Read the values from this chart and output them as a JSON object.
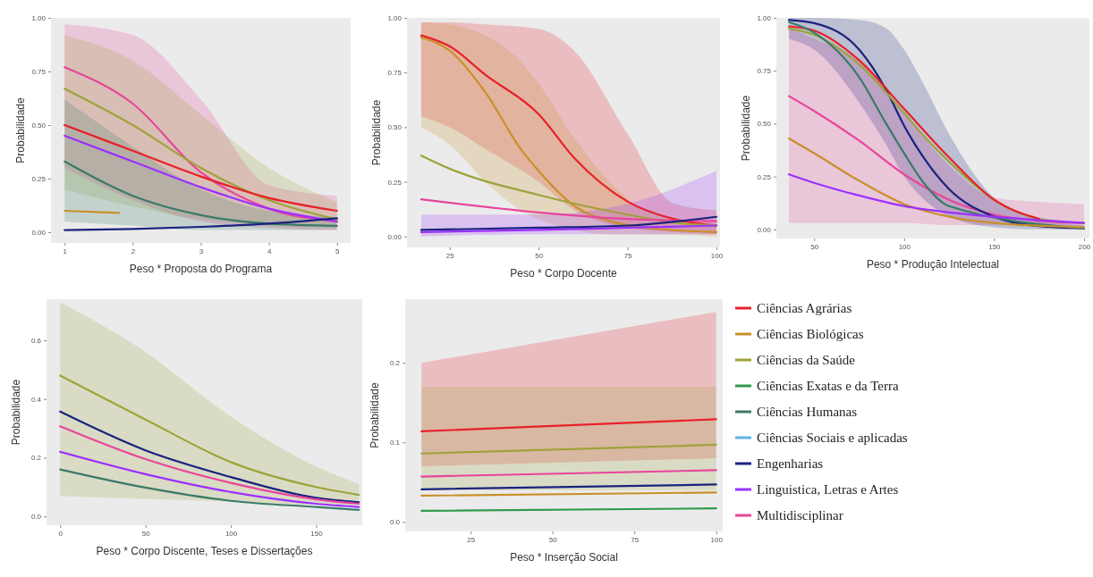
{
  "chart_data": [
    {
      "type": "line",
      "xlabel": "Peso * Proposta do Programa",
      "ylabel": "Probabilidade",
      "xlim": [
        0.8,
        5.2
      ],
      "ylim": [
        -0.05,
        1.0
      ],
      "xticks": [
        1,
        2,
        3,
        4,
        5
      ],
      "yticks": [
        {
          "value": 0,
          "label": "0.00"
        },
        {
          "value": 0.25,
          "label": "0.25"
        },
        {
          "value": 0.5,
          "label": "0.50"
        },
        {
          "value": 0.75,
          "label": "0.75"
        },
        {
          "value": 1,
          "label": "1.00"
        }
      ],
      "legend": false,
      "series": [
        {
          "color": "#e8459a",
          "x": [
            1,
            2,
            3,
            4,
            5
          ],
          "values": [
            0.77,
            0.6,
            0.28,
            0.11,
            0.05
          ],
          "lower": [
            0.3,
            0.15,
            0.05,
            0.02,
            0.01
          ],
          "upper": [
            0.97,
            0.92,
            0.62,
            0.22,
            0.17
          ]
        },
        {
          "color": "#9ea33a",
          "x": [
            1,
            2,
            3,
            4,
            5
          ],
          "values": [
            0.67,
            0.5,
            0.3,
            0.15,
            0.06
          ],
          "lower": [
            0.2,
            0.12,
            0.06,
            0.03,
            0.02
          ],
          "upper": [
            0.92,
            0.8,
            0.55,
            0.3,
            0.14
          ]
        },
        {
          "color": "#e8202a",
          "x": [
            1,
            2,
            3,
            4,
            5
          ],
          "values": [
            0.5,
            0.38,
            0.26,
            0.16,
            0.1
          ]
        },
        {
          "color": "#9b30ff",
          "x": [
            1,
            2,
            3,
            4,
            5
          ],
          "values": [
            0.45,
            0.33,
            0.21,
            0.11,
            0.05
          ]
        },
        {
          "color": "#3a7a6a",
          "x": [
            1,
            2,
            3,
            4,
            5
          ],
          "values": [
            0.33,
            0.17,
            0.08,
            0.04,
            0.03
          ],
          "lower": [
            0.05,
            0.03,
            0.01,
            0.01,
            0.01
          ],
          "upper": [
            0.62,
            0.4,
            0.2,
            0.1,
            0.07
          ]
        },
        {
          "color": "#c8902a",
          "x": [
            1,
            1.8
          ],
          "values": [
            0.1,
            0.09
          ]
        },
        {
          "color": "#1a237e",
          "x": [
            1,
            2,
            3,
            4,
            5
          ],
          "values": [
            0.01,
            0.015,
            0.025,
            0.04,
            0.065
          ]
        }
      ]
    },
    {
      "type": "line",
      "xlabel": "Peso * Corpo Docente",
      "ylabel": "Probabilidade",
      "xlim": [
        13,
        101
      ],
      "ylim": [
        -0.05,
        1.0
      ],
      "xticks": [
        25,
        50,
        75,
        100
      ],
      "yticks": [
        {
          "value": 0,
          "label": "0.00"
        },
        {
          "value": 0.25,
          "label": "0.25"
        },
        {
          "value": 0.5,
          "label": "0.50"
        },
        {
          "value": 0.75,
          "label": "0.75"
        },
        {
          "value": 1,
          "label": "1.00"
        }
      ],
      "legend": false,
      "series": [
        {
          "color": "#e8202a",
          "x": [
            17,
            25,
            35,
            50,
            60,
            75,
            88,
            100
          ],
          "values": [
            0.92,
            0.87,
            0.74,
            0.56,
            0.36,
            0.16,
            0.08,
            0.05
          ],
          "lower": [
            0.55,
            0.5,
            0.4,
            0.25,
            0.12,
            0.04,
            0.02,
            0.01
          ],
          "upper": [
            0.98,
            0.98,
            0.97,
            0.95,
            0.85,
            0.47,
            0.15,
            0.12
          ]
        },
        {
          "color": "#c8902a",
          "x": [
            17,
            25,
            35,
            45,
            50,
            60,
            70,
            80,
            100
          ],
          "values": [
            0.91,
            0.85,
            0.66,
            0.4,
            0.3,
            0.14,
            0.07,
            0.04,
            0.02
          ],
          "lower": [
            0.5,
            0.42,
            0.25,
            0.12,
            0.08,
            0.03,
            0.01,
            0.01,
            0.0
          ],
          "upper": [
            0.98,
            0.97,
            0.92,
            0.8,
            0.7,
            0.45,
            0.25,
            0.12,
            0.06
          ]
        },
        {
          "color": "#9ea33a",
          "x": [
            17,
            25,
            50,
            75,
            90,
            100
          ],
          "values": [
            0.37,
            0.31,
            0.19,
            0.1,
            0.06,
            0.05
          ]
        },
        {
          "color": "#e8459a",
          "x": [
            17,
            50,
            75,
            100
          ],
          "values": [
            0.17,
            0.11,
            0.08,
            0.07
          ]
        },
        {
          "color": "#9b30ff",
          "x": [
            17,
            50,
            75,
            100
          ],
          "values": [
            0.02,
            0.03,
            0.04,
            0.05
          ],
          "lower": [
            0.0,
            0.01,
            0.01,
            0.01
          ],
          "upper": [
            0.1,
            0.1,
            0.15,
            0.3
          ]
        },
        {
          "color": "#1a237e",
          "x": [
            17,
            50,
            75,
            100
          ],
          "values": [
            0.03,
            0.04,
            0.05,
            0.09
          ]
        }
      ]
    },
    {
      "type": "line",
      "xlabel": "Peso * Produção Intelectual",
      "ylabel": "Probabilidade",
      "xlim": [
        29,
        203
      ],
      "ylim": [
        -0.043,
        1.0
      ],
      "xticks": [
        50,
        100,
        150,
        200
      ],
      "yticks": [
        {
          "value": 0,
          "label": "0.00"
        },
        {
          "value": 0.25,
          "label": "0.25"
        },
        {
          "value": 0.5,
          "label": "0.50"
        },
        {
          "value": 0.75,
          "label": "0.75"
        },
        {
          "value": 1,
          "label": "1.00"
        }
      ],
      "legend": false,
      "series": [
        {
          "color": "#e8459a",
          "x": [
            36,
            50,
            75,
            100,
            125,
            150,
            175,
            200
          ],
          "values": [
            0.63,
            0.56,
            0.42,
            0.26,
            0.14,
            0.07,
            0.04,
            0.03
          ],
          "lower": [
            0.03,
            0.03,
            0.03,
            0.03,
            0.02,
            0.02,
            0.02,
            0.01
          ],
          "upper": [
            0.95,
            0.9,
            0.8,
            0.55,
            0.3,
            0.15,
            0.13,
            0.12
          ]
        },
        {
          "color": "#1a237e",
          "x": [
            36,
            50,
            75,
            90,
            100,
            110,
            125,
            150,
            175,
            200
          ],
          "values": [
            0.99,
            0.975,
            0.85,
            0.66,
            0.49,
            0.35,
            0.19,
            0.06,
            0.015,
            0.005
          ],
          "lower": [
            0.9,
            0.85,
            0.6,
            0.4,
            0.25,
            0.15,
            0.06,
            0.01,
            0.0,
            0.0
          ],
          "upper": [
            1.0,
            1.0,
            0.99,
            0.95,
            0.85,
            0.7,
            0.45,
            0.15,
            0.05,
            0.02
          ]
        },
        {
          "color": "#9ea33a",
          "x": [
            36,
            50,
            75,
            100,
            110,
            125,
            150,
            175,
            200
          ],
          "values": [
            0.95,
            0.92,
            0.78,
            0.55,
            0.45,
            0.32,
            0.14,
            0.05,
            0.03
          ]
        },
        {
          "color": "#e8202a",
          "x": [
            36,
            50,
            75,
            100,
            125,
            150,
            175
          ],
          "values": [
            0.96,
            0.94,
            0.8,
            0.57,
            0.34,
            0.14,
            0.05
          ]
        },
        {
          "color": "#3a7a6a",
          "x": [
            36,
            50,
            75,
            90,
            100,
            110,
            125,
            200
          ],
          "values": [
            0.98,
            0.93,
            0.72,
            0.5,
            0.36,
            0.23,
            0.11,
            0.005
          ]
        },
        {
          "color": "#c8902a",
          "x": [
            36,
            50,
            75,
            100,
            125,
            150,
            200
          ],
          "values": [
            0.43,
            0.36,
            0.23,
            0.12,
            0.06,
            0.03,
            0.01
          ]
        },
        {
          "color": "#9b30ff",
          "x": [
            36,
            50,
            75,
            100,
            125,
            150,
            200
          ],
          "values": [
            0.26,
            0.22,
            0.16,
            0.11,
            0.08,
            0.06,
            0.03
          ]
        }
      ]
    },
    {
      "type": "line",
      "xlabel": "Peso * Corpo Discente, Teses e Dissertações",
      "ylabel": "Probabilidade",
      "xlim": [
        -8,
        177
      ],
      "ylim": [
        -0.03,
        0.74
      ],
      "xticks": [
        0,
        50,
        100,
        150
      ],
      "yticks": [
        {
          "value": 0,
          "label": "0.0"
        },
        {
          "value": 0.2,
          "label": "0.2"
        },
        {
          "value": 0.4,
          "label": "0.4"
        },
        {
          "value": 0.6,
          "label": "0.6"
        }
      ],
      "legend": false,
      "series": [
        {
          "color": "#9ea33a",
          "x": [
            0,
            50,
            100,
            150,
            175
          ],
          "values": [
            0.48,
            0.33,
            0.185,
            0.1,
            0.073
          ],
          "lower": [
            0.07,
            0.06,
            0.05,
            0.04,
            0.04
          ],
          "upper": [
            0.73,
            0.56,
            0.34,
            0.17,
            0.11
          ]
        },
        {
          "color": "#1a237e",
          "x": [
            0,
            50,
            100,
            150,
            175
          ],
          "values": [
            0.357,
            0.225,
            0.134,
            0.063,
            0.048
          ]
        },
        {
          "color": "#e8459a",
          "x": [
            0,
            50,
            100,
            150,
            175
          ],
          "values": [
            0.307,
            0.195,
            0.114,
            0.058,
            0.043
          ]
        },
        {
          "color": "#9b30ff",
          "x": [
            0,
            50,
            100,
            150,
            175
          ],
          "values": [
            0.22,
            0.144,
            0.083,
            0.043,
            0.032
          ]
        },
        {
          "color": "#3a7a6a",
          "x": [
            0,
            50,
            100,
            150,
            175
          ],
          "values": [
            0.16,
            0.098,
            0.053,
            0.032,
            0.022
          ]
        }
      ]
    },
    {
      "type": "line",
      "xlabel": "Peso * Inserção Social",
      "ylabel": "Probabilidade",
      "xlim": [
        5,
        102
      ],
      "ylim": [
        -0.012,
        0.28
      ],
      "xticks": [
        25,
        50,
        75,
        100
      ],
      "yticks": [
        {
          "value": 0,
          "label": "0.0"
        },
        {
          "value": 0.1,
          "label": "0.1"
        },
        {
          "value": 0.2,
          "label": "0.2"
        }
      ],
      "legend": "right",
      "series": [
        {
          "name": "Ciências Agrárias",
          "color": "#e8202a",
          "x": [
            10,
            100
          ],
          "values": [
            0.114,
            0.129
          ],
          "lower": [
            0.07,
            0.08
          ],
          "upper": [
            0.2,
            0.264
          ]
        },
        {
          "name": "Ciências Biológicas",
          "color": "#c8902a",
          "x": [
            10,
            100
          ],
          "values": [
            0.033,
            0.037
          ]
        },
        {
          "name": "Ciências da Saúde",
          "color": "#9ea33a",
          "x": [
            10,
            100
          ],
          "values": [
            0.086,
            0.097
          ],
          "lower": [
            0.04,
            0.04
          ],
          "upper": [
            0.17,
            0.17
          ]
        },
        {
          "name": "Ciências Exatas e da Terra",
          "color": "#2e9a4a",
          "x": [
            10,
            100
          ],
          "values": [
            0.014,
            0.017
          ]
        },
        {
          "name": "Ciências Humanas",
          "color": "#3a7a6a",
          "values": [
            null
          ]
        },
        {
          "name": "Ciências Sociais e aplicadas",
          "color": "#5ab4e6",
          "values": [
            null
          ]
        },
        {
          "name": "Engenharias",
          "color": "#1a237e",
          "x": [
            10,
            100
          ],
          "values": [
            0.041,
            0.047
          ]
        },
        {
          "name": " Linguistica, Letras e Artes",
          "color": "#9b30ff",
          "values": [
            null
          ]
        },
        {
          "name": "Multidisciplinar",
          "color": "#e8459a",
          "x": [
            10,
            100
          ],
          "values": [
            0.057,
            0.065
          ]
        }
      ]
    }
  ]
}
